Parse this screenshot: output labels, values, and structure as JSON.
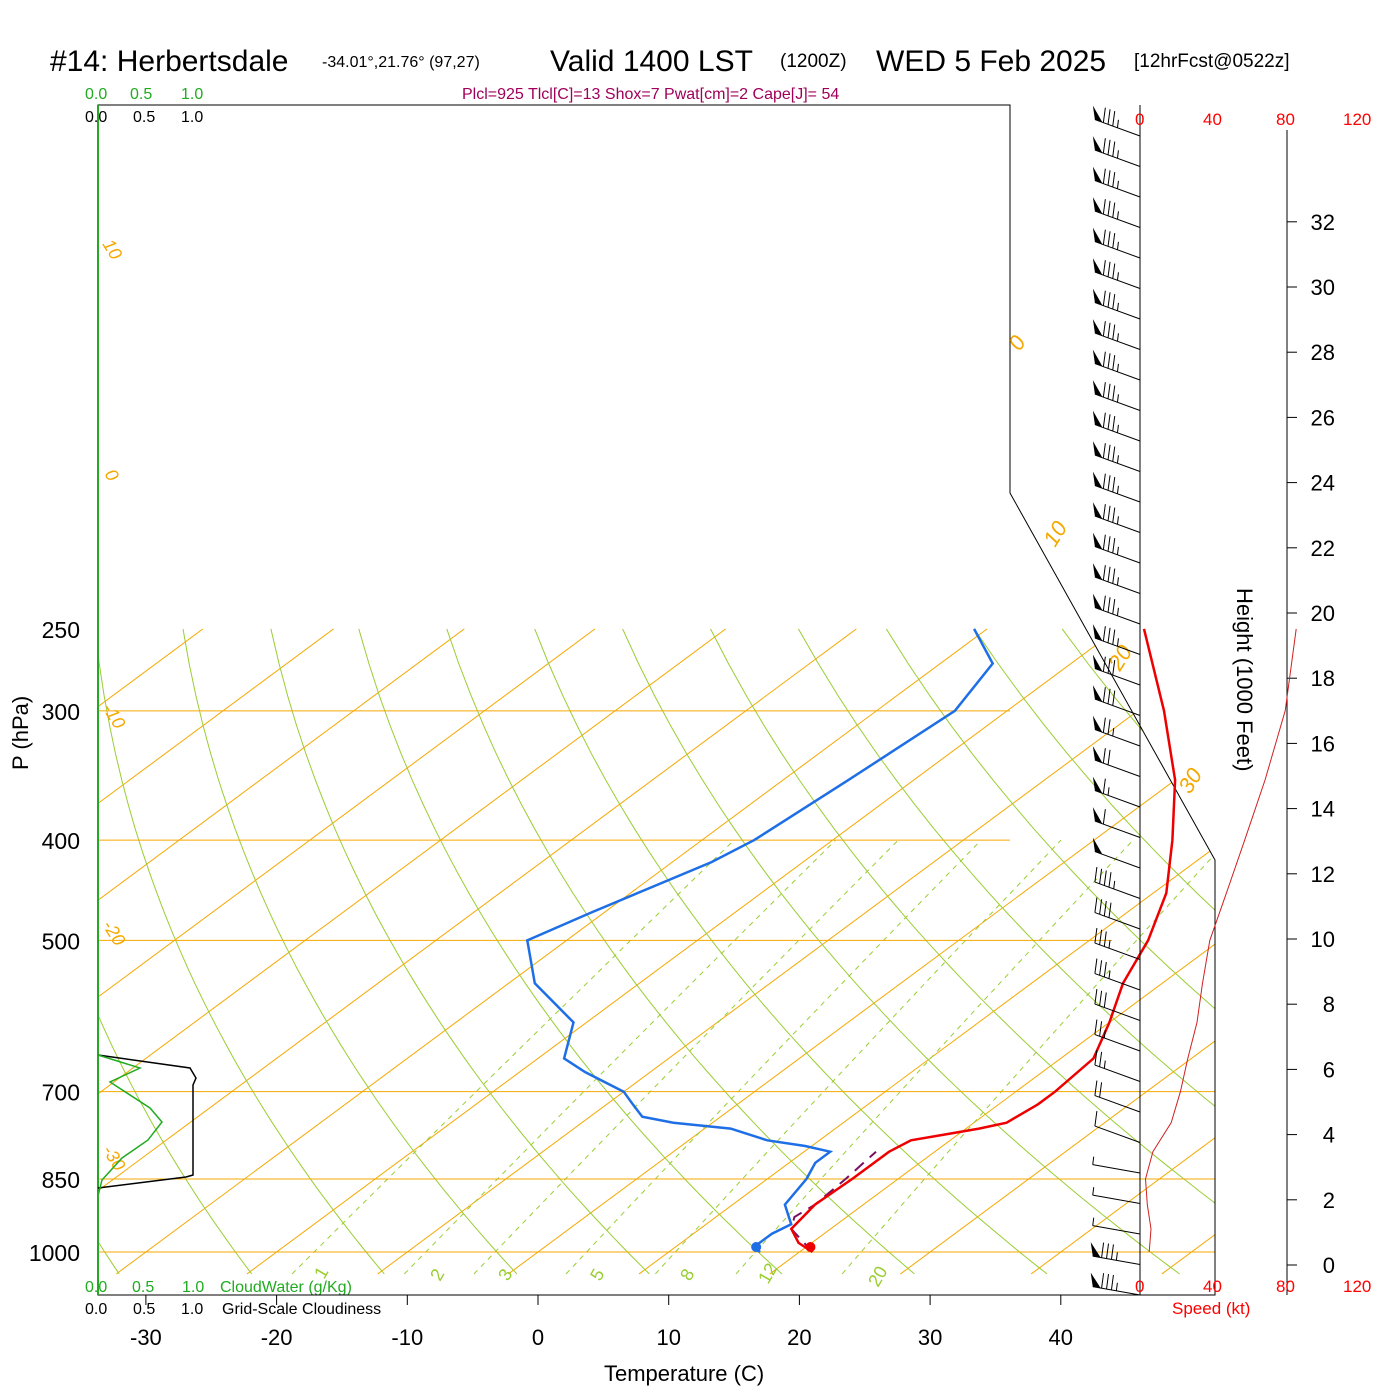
{
  "title": {
    "station": "#14: Herbertsdale",
    "coords": "-34.01°,21.76° (97,27)",
    "valid": "Valid 1400 LST",
    "z": "(1200Z)",
    "date": "WED 5 Feb 2025",
    "fcst": "[12hrFcst@0522z]"
  },
  "indices": "Plcl=925 Tlcl[C]=13 Shox=7 Pwat[cm]=2 Cape[J]= 54",
  "cloud_water_scale": [
    "0.0",
    "0.5",
    "1.0"
  ],
  "cloudiness_scale": [
    "0.0",
    "0.5",
    "1.0"
  ],
  "cloud_water_label": "CloudWater (g/Kg)",
  "cloudiness_label": "Grid-Scale Cloudiness",
  "speed_ticks": [
    "0",
    "40",
    "80",
    "120"
  ],
  "speed_label": "Speed (kt)",
  "colors": {
    "temperature": "#ee0000",
    "dewpoint": "#1e6fe6",
    "parcel": "#7a1060",
    "isobar_isotherm": "#f5a800",
    "dry_adiabat": "#9acd32",
    "mixing_ratio": "#9acd32",
    "cloud_water": "#22aa22",
    "cloudiness": "#000000",
    "wind_speed": "#d02020"
  },
  "chart_data": {
    "type": "skew-t",
    "xlabel": "Temperature (C)",
    "ylabel": "P (hPa)",
    "y2label": "Height (1000 Feet)",
    "x_ticks": [
      -30,
      -20,
      -10,
      0,
      10,
      20,
      30,
      40
    ],
    "p_ticks": [
      250,
      300,
      400,
      500,
      700,
      850,
      1000
    ],
    "height_ticks": [
      0,
      2,
      4,
      6,
      8,
      10,
      12,
      14,
      16,
      18,
      20,
      22,
      24,
      26,
      28,
      30,
      32
    ],
    "isotherm_labels": [
      "10",
      "0",
      "-10",
      "-20",
      "-30",
      "0",
      "10",
      "20",
      "30"
    ],
    "mixing_ratio_labels": [
      "1",
      "2",
      "3",
      "5",
      "8",
      "12",
      "20"
    ],
    "temperature": [
      [
        1000,
        21
      ],
      [
        980,
        19
      ],
      [
        950,
        17
      ],
      [
        900,
        16.3
      ],
      [
        850,
        16.5
      ],
      [
        800,
        16.5
      ],
      [
        780,
        17
      ],
      [
        770,
        19
      ],
      [
        760,
        21
      ],
      [
        750,
        22.5
      ],
      [
        720,
        23
      ],
      [
        700,
        23
      ],
      [
        650,
        22.5
      ],
      [
        600,
        20
      ],
      [
        550,
        17
      ],
      [
        500,
        14.5
      ],
      [
        450,
        11
      ],
      [
        400,
        6
      ],
      [
        350,
        0
      ],
      [
        300,
        -8
      ],
      [
        250,
        -18
      ]
    ],
    "dewpoint": [
      [
        1000,
        17
      ],
      [
        990,
        16
      ],
      [
        960,
        16
      ],
      [
        940,
        16.5
      ],
      [
        900,
        14
      ],
      [
        850,
        13
      ],
      [
        820,
        12
      ],
      [
        800,
        12
      ],
      [
        790,
        9.5
      ],
      [
        780,
        6
      ],
      [
        760,
        2
      ],
      [
        750,
        -3
      ],
      [
        740,
        -6
      ],
      [
        720,
        -8
      ],
      [
        700,
        -10
      ],
      [
        670,
        -15
      ],
      [
        650,
        -18
      ],
      [
        600,
        -21
      ],
      [
        550,
        -28
      ],
      [
        500,
        -33
      ],
      [
        470,
        -31
      ],
      [
        420,
        -27
      ],
      [
        400,
        -26
      ],
      [
        350,
        -25
      ],
      [
        300,
        -24
      ],
      [
        270,
        -26
      ],
      [
        250,
        -31
      ]
    ],
    "parcel": [
      [
        1000,
        21
      ],
      [
        950,
        17
      ],
      [
        925,
        16
      ],
      [
        900,
        16.3
      ],
      [
        850,
        16
      ],
      [
        820,
        15.7
      ],
      [
        800,
        15.5
      ]
    ],
    "surface": {
      "temperature": 21,
      "dewpoint": 17
    },
    "wind_speed_profile_kt": [
      [
        1000,
        5
      ],
      [
        950,
        6
      ],
      [
        900,
        4
      ],
      [
        850,
        3
      ],
      [
        800,
        7
      ],
      [
        750,
        17
      ],
      [
        700,
        22
      ],
      [
        650,
        26
      ],
      [
        600,
        31
      ],
      [
        550,
        34
      ],
      [
        500,
        38
      ],
      [
        450,
        47
      ],
      [
        400,
        57
      ],
      [
        350,
        68
      ],
      [
        300,
        79
      ],
      [
        250,
        85
      ]
    ]
  }
}
